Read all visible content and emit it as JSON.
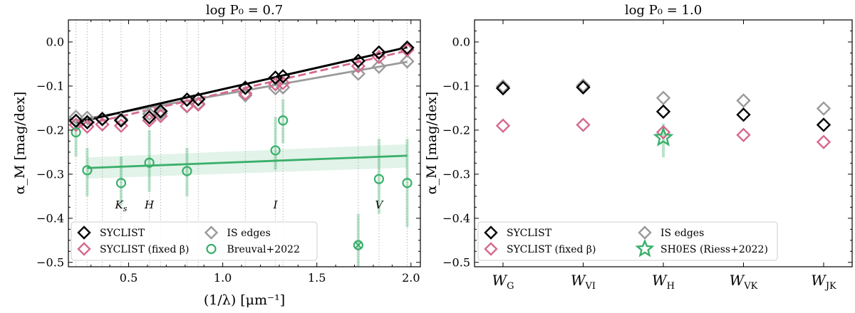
{
  "chart_data": [
    {
      "type": "scatter",
      "title": "log P₀ = 0.7",
      "xlabel": "(1/λ) [μm⁻¹]",
      "ylabel": "α_M [mag/dex]",
      "xlim": [
        0.18,
        2.05
      ],
      "ylim": [
        -0.51,
        0.05
      ],
      "xticks": [
        "0.5",
        "1.0",
        "1.5",
        "2.0"
      ],
      "xtick_values": [
        0.5,
        1.0,
        1.5,
        2.0
      ],
      "yticks": [
        "0.0",
        "−0.1",
        "−0.2",
        "−0.3",
        "−0.4",
        "−0.5"
      ],
      "ytick_values": [
        0.0,
        -0.1,
        -0.2,
        -0.3,
        -0.4,
        -0.5
      ],
      "grid": "vertical dotted lines at each filter",
      "legend_position": "lower-left",
      "colors": {
        "syclist": "#000000",
        "fixed_beta": "#d6698f",
        "is_edges": "#9a9a9a",
        "breuval": "#3aaf6a"
      },
      "band_labels": [
        {
          "text": "Ks",
          "x": 0.46
        },
        {
          "text": "H",
          "x": 0.61
        },
        {
          "text": "I",
          "x": 1.28
        },
        {
          "text": "V",
          "x": 1.83
        }
      ],
      "filter_x": [
        0.22,
        0.28,
        0.36,
        0.46,
        0.61,
        0.67,
        0.81,
        0.87,
        1.12,
        1.28,
        1.32,
        1.72,
        1.83,
        1.98
      ],
      "series": [
        {
          "name": "SYCLIST",
          "marker": "diamond",
          "x": [
            0.22,
            0.28,
            0.36,
            0.46,
            0.61,
            0.67,
            0.81,
            0.87,
            1.12,
            1.28,
            1.32,
            1.72,
            1.83,
            1.98
          ],
          "y": [
            -0.179,
            -0.182,
            -0.175,
            -0.178,
            -0.171,
            -0.157,
            -0.131,
            -0.13,
            -0.104,
            -0.081,
            -0.078,
            -0.043,
            -0.024,
            -0.013
          ],
          "fit": [
            [
              0.22,
              -0.183
            ],
            [
              1.98,
              -0.012
            ]
          ],
          "fit_style": "solid"
        },
        {
          "name": "SYCLIST (fixed β)",
          "marker": "diamond",
          "x": [
            0.22,
            0.28,
            0.36,
            0.46,
            0.61,
            0.67,
            0.81,
            0.87,
            1.12,
            1.28,
            1.32,
            1.72,
            1.83,
            1.98
          ],
          "y": [
            -0.188,
            -0.192,
            -0.187,
            -0.19,
            -0.178,
            -0.168,
            -0.145,
            -0.142,
            -0.117,
            -0.096,
            -0.093,
            -0.055,
            -0.034,
            -0.018
          ],
          "fit": [
            [
              0.22,
              -0.192
            ],
            [
              1.98,
              -0.02
            ]
          ],
          "fit_style": "dashed"
        },
        {
          "name": "IS edges",
          "marker": "diamond",
          "x": [
            0.22,
            0.28,
            0.36,
            0.46,
            0.61,
            0.67,
            0.81,
            0.87,
            1.12,
            1.28,
            1.32,
            1.72,
            1.83,
            1.98
          ],
          "y": [
            -0.17,
            -0.172,
            -0.174,
            -0.175,
            -0.163,
            -0.162,
            -0.146,
            -0.14,
            -0.121,
            -0.105,
            -0.103,
            -0.072,
            -0.056,
            -0.044
          ],
          "fit": [
            [
              0.22,
              -0.178
            ],
            [
              1.98,
              -0.045
            ]
          ],
          "fit_style": "solid"
        },
        {
          "name": "Breuval+2022",
          "marker": "circle",
          "x": [
            0.22,
            0.28,
            0.46,
            0.61,
            0.81,
            1.28,
            1.32,
            1.72,
            1.83,
            1.98
          ],
          "y": [
            -0.205,
            -0.291,
            -0.32,
            -0.274,
            -0.293,
            -0.246,
            -0.178,
            -0.461,
            -0.311,
            -0.32
          ],
          "err_lo": [
            -0.26,
            -0.35,
            -0.37,
            -0.34,
            -0.35,
            -0.29,
            -0.23,
            -0.51,
            -0.39,
            -0.42
          ],
          "err_hi": [
            -0.18,
            -0.24,
            -0.26,
            -0.2,
            -0.24,
            -0.17,
            -0.13,
            -0.39,
            -0.22,
            -0.22
          ],
          "crossed": [
            false,
            false,
            false,
            false,
            false,
            false,
            false,
            true,
            false,
            false
          ],
          "fit": [
            [
              0.28,
              -0.286
            ],
            [
              1.98,
              -0.258
            ]
          ],
          "band_lo": [
            [
              0.28,
              -0.31
            ],
            [
              1.98,
              -0.285
            ]
          ],
          "band_hi": [
            [
              0.28,
              -0.262
            ],
            [
              1.98,
              -0.232
            ]
          ],
          "fit_style": "solid"
        }
      ]
    },
    {
      "type": "scatter",
      "title": "log P₀ = 1.0",
      "xlabel": "",
      "ylabel": "α_M [mag/dex]",
      "ylim": [
        -0.51,
        0.05
      ],
      "yticks": [
        "0.0",
        "−0.1",
        "−0.2",
        "−0.3",
        "−0.4",
        "−0.5"
      ],
      "ytick_values": [
        0.0,
        -0.1,
        -0.2,
        -0.3,
        -0.4,
        -0.5
      ],
      "categories": [
        {
          "base": "W",
          "sub": "G"
        },
        {
          "base": "W",
          "sub": "VI"
        },
        {
          "base": "W",
          "sub": "H"
        },
        {
          "base": "W",
          "sub": "VK"
        },
        {
          "base": "W",
          "sub": "JK"
        }
      ],
      "legend_position": "lower-left",
      "series": [
        {
          "name": "SYCLIST",
          "marker": "diamond",
          "values": [
            -0.105,
            -0.103,
            -0.158,
            -0.165,
            -0.188
          ]
        },
        {
          "name": "SYCLIST (fixed β)",
          "marker": "diamond",
          "values": [
            -0.19,
            -0.188,
            -0.205,
            -0.211,
            -0.227
          ]
        },
        {
          "name": "IS edges",
          "marker": "diamond",
          "values": [
            -0.101,
            -0.099,
            -0.127,
            -0.133,
            -0.151
          ]
        },
        {
          "name": "SH0ES (Riess+2022)",
          "marker": "star",
          "category_index": 2,
          "value": -0.217,
          "err_lo": -0.262,
          "err_hi": -0.185
        }
      ]
    }
  ]
}
